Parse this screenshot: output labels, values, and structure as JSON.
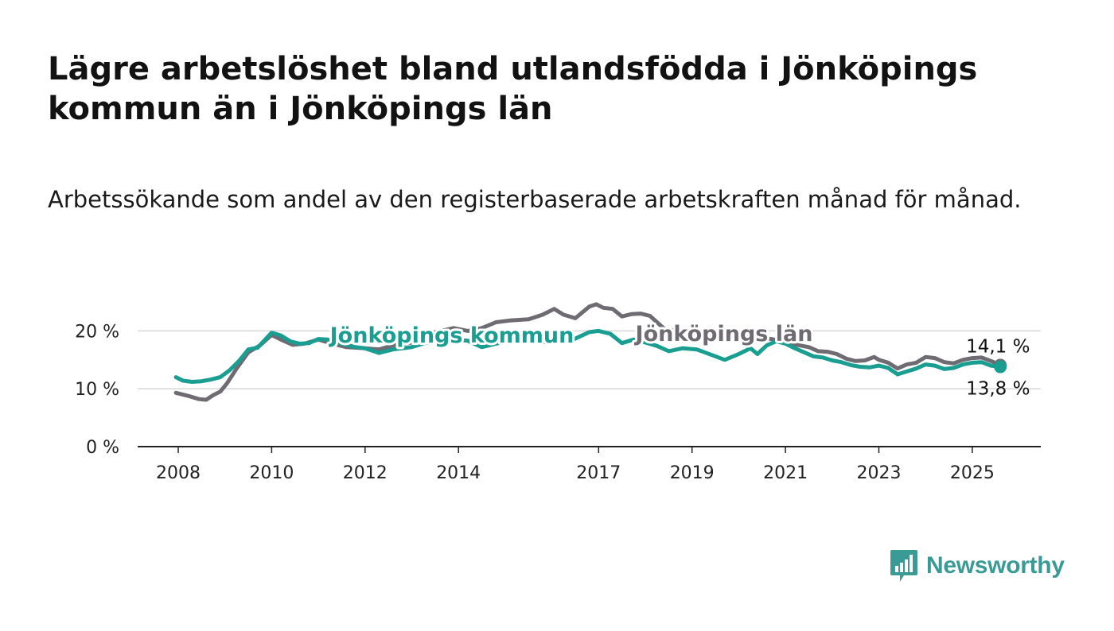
{
  "title": "Lägre arbetslöshet bland utlandsfödda i Jönköpings kommun än i Jönköpings län",
  "subtitle": "Arbetssökande som andel av den registerbaserade arbetskraften månad för månad.",
  "brand": {
    "name": "Newsworthy",
    "color": "#3a9a96"
  },
  "chart_data": {
    "type": "line",
    "x_ticks": [
      "2008",
      "2010",
      "2012",
      "2014",
      "2017",
      "2019",
      "2021",
      "2023",
      "2025"
    ],
    "y_ticks": [
      "0 %",
      "10 %",
      "20 %"
    ],
    "ylim": [
      0,
      25
    ],
    "grid": true,
    "series": [
      {
        "name": "Jönköpings län",
        "color": "#6e6c72",
        "end_label": "14,1 %",
        "points": [
          [
            2007.95,
            9.3
          ],
          [
            2008.2,
            8.8
          ],
          [
            2008.45,
            8.2
          ],
          [
            2008.6,
            8.1
          ],
          [
            2008.75,
            8.9
          ],
          [
            2008.9,
            9.5
          ],
          [
            2009.05,
            11.0
          ],
          [
            2009.25,
            13.5
          ],
          [
            2009.5,
            16.3
          ],
          [
            2009.75,
            17.5
          ],
          [
            2010.0,
            19.3
          ],
          [
            2010.2,
            18.5
          ],
          [
            2010.45,
            17.6
          ],
          [
            2010.7,
            17.8
          ],
          [
            2011.0,
            18.5
          ],
          [
            2011.3,
            17.8
          ],
          [
            2011.6,
            17.2
          ],
          [
            2012.0,
            17.0
          ],
          [
            2012.3,
            16.8
          ],
          [
            2012.6,
            17.5
          ],
          [
            2013.0,
            18.0
          ],
          [
            2013.5,
            19.8
          ],
          [
            2013.9,
            20.5
          ],
          [
            2014.2,
            20.0
          ],
          [
            2014.5,
            20.5
          ],
          [
            2014.8,
            21.5
          ],
          [
            2015.1,
            21.8
          ],
          [
            2015.5,
            22.0
          ],
          [
            2015.8,
            22.8
          ],
          [
            2016.05,
            23.8
          ],
          [
            2016.25,
            22.8
          ],
          [
            2016.5,
            22.2
          ],
          [
            2016.8,
            24.2
          ],
          [
            2016.95,
            24.6
          ],
          [
            2017.1,
            24.0
          ],
          [
            2017.3,
            23.8
          ],
          [
            2017.5,
            22.5
          ],
          [
            2017.7,
            22.9
          ],
          [
            2017.9,
            23.0
          ],
          [
            2018.1,
            22.6
          ],
          [
            2018.4,
            20.4
          ],
          [
            2018.8,
            19.8
          ],
          [
            2019.2,
            19.7
          ],
          [
            2019.6,
            19.5
          ],
          [
            2020.0,
            19.4
          ],
          [
            2020.35,
            19.0
          ],
          [
            2020.7,
            18.6
          ],
          [
            2021.0,
            18.0
          ],
          [
            2021.3,
            17.5
          ],
          [
            2021.5,
            17.2
          ],
          [
            2021.7,
            16.5
          ],
          [
            2021.9,
            16.4
          ],
          [
            2022.1,
            16.0
          ],
          [
            2022.3,
            15.2
          ],
          [
            2022.5,
            14.8
          ],
          [
            2022.7,
            14.9
          ],
          [
            2022.9,
            15.5
          ],
          [
            2023.0,
            15.0
          ],
          [
            2023.2,
            14.5
          ],
          [
            2023.4,
            13.5
          ],
          [
            2023.6,
            14.2
          ],
          [
            2023.8,
            14.5
          ],
          [
            2024.0,
            15.5
          ],
          [
            2024.2,
            15.3
          ],
          [
            2024.4,
            14.6
          ],
          [
            2024.6,
            14.4
          ],
          [
            2024.8,
            15.0
          ],
          [
            2025.0,
            15.3
          ],
          [
            2025.2,
            15.4
          ],
          [
            2025.4,
            14.8
          ],
          [
            2025.6,
            14.1
          ]
        ]
      },
      {
        "name": "Jönköpings kommun",
        "color": "#1a9e92",
        "end_label": "13,8 %",
        "points": [
          [
            2007.95,
            12.0
          ],
          [
            2008.1,
            11.4
          ],
          [
            2008.3,
            11.2
          ],
          [
            2008.5,
            11.3
          ],
          [
            2008.7,
            11.6
          ],
          [
            2008.9,
            12.0
          ],
          [
            2009.1,
            13.2
          ],
          [
            2009.3,
            14.8
          ],
          [
            2009.5,
            16.8
          ],
          [
            2009.7,
            17.1
          ],
          [
            2010.0,
            19.7
          ],
          [
            2010.2,
            19.2
          ],
          [
            2010.4,
            18.2
          ],
          [
            2010.6,
            17.8
          ],
          [
            2010.8,
            17.9
          ],
          [
            2011.0,
            18.6
          ],
          [
            2011.2,
            18.5
          ],
          [
            2011.5,
            17.8
          ],
          [
            2011.8,
            17.2
          ],
          [
            2012.0,
            17.0
          ],
          [
            2012.3,
            16.2
          ],
          [
            2012.6,
            16.8
          ],
          [
            2013.0,
            17.2
          ],
          [
            2013.4,
            18.2
          ],
          [
            2013.8,
            18.6
          ],
          [
            2014.2,
            18.3
          ],
          [
            2014.5,
            17.2
          ],
          [
            2014.8,
            17.8
          ],
          [
            2015.2,
            18.4
          ],
          [
            2015.6,
            18.2
          ],
          [
            2016.0,
            18.0
          ],
          [
            2016.4,
            18.3
          ],
          [
            2016.8,
            19.8
          ],
          [
            2017.0,
            20.0
          ],
          [
            2017.25,
            19.5
          ],
          [
            2017.5,
            17.9
          ],
          [
            2017.75,
            18.5
          ],
          [
            2018.0,
            18.0
          ],
          [
            2018.25,
            17.4
          ],
          [
            2018.5,
            16.5
          ],
          [
            2018.8,
            17.0
          ],
          [
            2019.1,
            16.8
          ],
          [
            2019.4,
            15.9
          ],
          [
            2019.7,
            15.0
          ],
          [
            2020.0,
            16.0
          ],
          [
            2020.25,
            17.0
          ],
          [
            2020.4,
            16.0
          ],
          [
            2020.6,
            17.5
          ],
          [
            2020.8,
            18.2
          ],
          [
            2021.0,
            17.8
          ],
          [
            2021.2,
            17.0
          ],
          [
            2021.4,
            16.3
          ],
          [
            2021.6,
            15.6
          ],
          [
            2021.8,
            15.4
          ],
          [
            2022.0,
            14.9
          ],
          [
            2022.2,
            14.6
          ],
          [
            2022.4,
            14.1
          ],
          [
            2022.6,
            13.8
          ],
          [
            2022.8,
            13.7
          ],
          [
            2023.0,
            14.0
          ],
          [
            2023.2,
            13.6
          ],
          [
            2023.4,
            12.5
          ],
          [
            2023.6,
            13.0
          ],
          [
            2023.8,
            13.5
          ],
          [
            2024.0,
            14.2
          ],
          [
            2024.2,
            14.0
          ],
          [
            2024.4,
            13.4
          ],
          [
            2024.6,
            13.6
          ],
          [
            2024.8,
            14.2
          ],
          [
            2025.0,
            14.5
          ],
          [
            2025.2,
            14.6
          ],
          [
            2025.4,
            14.0
          ],
          [
            2025.6,
            13.8
          ]
        ]
      }
    ]
  }
}
